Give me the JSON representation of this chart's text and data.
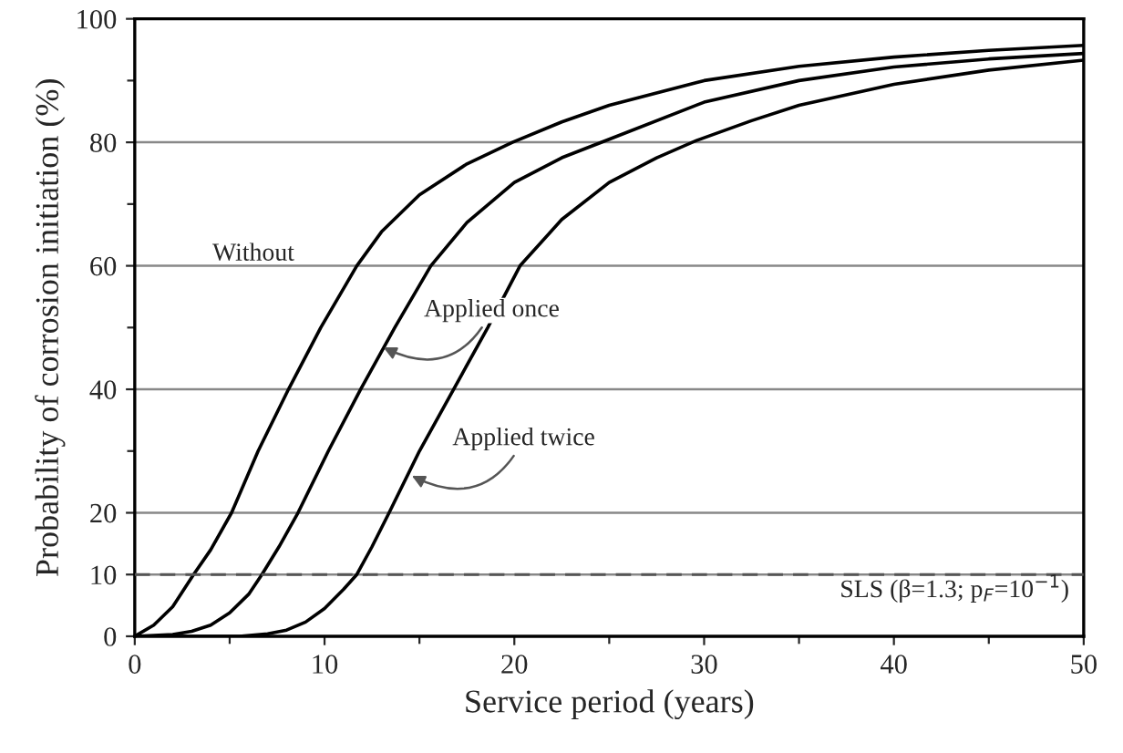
{
  "chart_data": {
    "type": "line",
    "xlabel": "Service period (years)",
    "ylabel": "Probability of corrosion initiation (%)",
    "series": [
      {
        "color": "#000000",
        "x": [
          0,
          1,
          2,
          3.1,
          4,
          5.1,
          6.5,
          8.1,
          9.8,
          11.7,
          13,
          15,
          17.5,
          19.9,
          22.5,
          25,
          30,
          35,
          40,
          45,
          50
        ],
        "values": [
          0,
          1.8,
          4.8,
          10,
          14,
          20,
          30,
          40,
          50,
          60,
          65.5,
          71.5,
          76.5,
          80,
          83.3,
          86,
          90,
          92.3,
          93.8,
          94.9,
          95.7
        ]
      },
      {
        "color": "#000000",
        "x": [
          0,
          2,
          3,
          4,
          5,
          6,
          6.7,
          7.6,
          8.6,
          10.2,
          11.9,
          13.7,
          15.6,
          17.5,
          20,
          22.5,
          25,
          30,
          35,
          40,
          45,
          50
        ],
        "values": [
          0,
          0.3,
          0.8,
          1.8,
          3.8,
          6.8,
          10,
          14.5,
          20,
          30,
          40,
          50,
          60,
          67,
          73.5,
          77.5,
          80.5,
          86.5,
          90,
          92.2,
          93.5,
          94.4
        ]
      },
      {
        "color": "#000000",
        "x": [
          0,
          5.5,
          7,
          8,
          9,
          10,
          11,
          11.7,
          12.5,
          13.4,
          15,
          16.8,
          18.6,
          20.3,
          22.5,
          25,
          27.5,
          29.6,
          32.5,
          35,
          40,
          45,
          50
        ],
        "values": [
          0,
          0,
          0.4,
          1,
          2.3,
          4.5,
          7.6,
          10,
          14.5,
          20,
          30,
          40,
          50,
          60,
          67.5,
          73.5,
          77.5,
          80.3,
          83.5,
          86,
          89.4,
          91.7,
          93.3
        ]
      }
    ],
    "xlim": [
      0,
      50
    ],
    "xticks": [
      0,
      {
        "value": 5,
        "label": null
      },
      10,
      {
        "value": 15,
        "label": null
      },
      20,
      {
        "value": 25,
        "label": null
      },
      30,
      {
        "value": 35,
        "label": null
      },
      40,
      {
        "value": 45,
        "label": null
      },
      50
    ],
    "ylim": [
      0,
      100
    ],
    "yticks": [
      0,
      10,
      20,
      {
        "value": 30,
        "label": null
      },
      40,
      {
        "value": 50,
        "label": null
      },
      60,
      {
        "value": 70,
        "label": null
      },
      80,
      {
        "value": 90,
        "label": null
      },
      100
    ],
    "grid": "y",
    "marker": "none",
    "line_style": "solid",
    "legend": false,
    "ref_lines": [
      {
        "axis": "y",
        "value": 10,
        "label": "SLS (β=1.3; p$_{F}$=10$^{−1}$)",
        "color": "#555555",
        "line_style": "dashed"
      }
    ],
    "annotations": [
      "Without",
      {
        "text": "Applied once",
        "x": 13.1,
        "y": 46.8
      },
      {
        "text": "Applied twice",
        "x": 14.6,
        "y": 26
      }
    ]
  }
}
